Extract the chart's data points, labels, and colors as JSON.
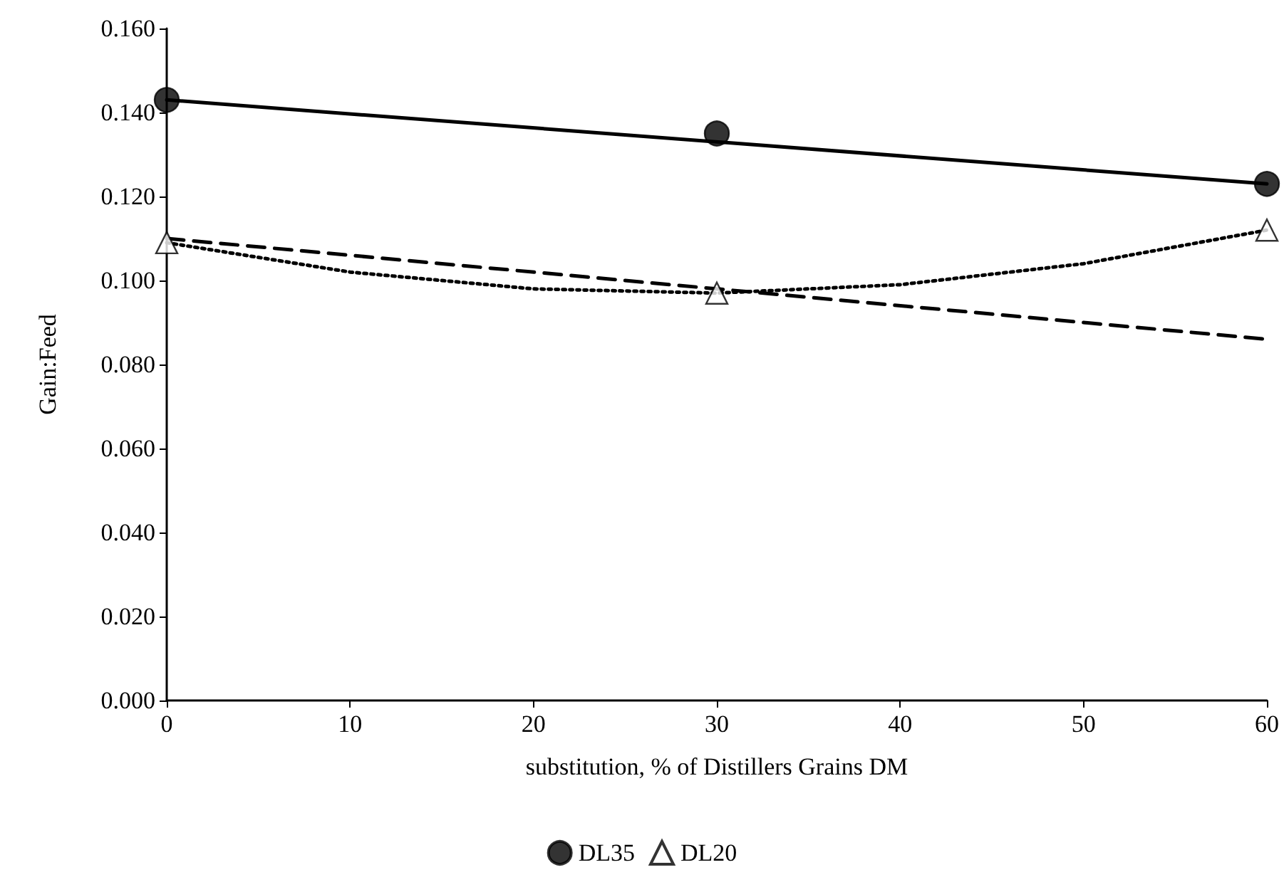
{
  "chart_data": {
    "type": "scatter",
    "xlabel": "substitution, % of Distillers Grains DM",
    "ylabel": "Gain:Feed",
    "xlim": [
      0,
      60
    ],
    "xticks": [
      0,
      10,
      20,
      30,
      40,
      50,
      60
    ],
    "ylim": [
      0,
      0.16
    ],
    "yticks": [
      {
        "value": 0,
        "label": "0.000"
      },
      {
        "value": 0.02,
        "label": "0.020"
      },
      {
        "value": 0.04,
        "label": "0.040"
      },
      {
        "value": 0.06,
        "label": "0.060"
      },
      {
        "value": 0.08,
        "label": "0.080"
      },
      {
        "value": 0.1,
        "label": "0.100"
      },
      {
        "value": 0.12,
        "label": "0.120"
      },
      {
        "value": 0.14,
        "label": "0.140"
      },
      {
        "value": 0.16,
        "label": "0.160"
      }
    ],
    "grid": false,
    "legend": "bottom",
    "series": [
      {
        "name": "DL35",
        "marker": "circle",
        "color": "#000000",
        "x": [
          0,
          30,
          60
        ],
        "values": [
          0.143,
          0.135,
          0.123
        ]
      },
      {
        "name": "DL20",
        "marker": "triangle",
        "color": "#000000",
        "x": [
          0,
          30,
          60
        ],
        "values": [
          0.109,
          0.097,
          0.112
        ]
      },
      {
        "type": "line",
        "marker": "none",
        "line_style": "solid",
        "color": "#000000",
        "x": [
          0,
          60
        ],
        "values": [
          0.143,
          0.123
        ]
      },
      {
        "type": "line",
        "marker": "none",
        "line_style": "dashed",
        "color": "#000000",
        "x": [
          0,
          60
        ],
        "values": [
          0.11,
          0.086
        ]
      },
      {
        "type": "line",
        "marker": "none",
        "line_style": "dotted",
        "color": "#000000",
        "x": [
          0,
          10,
          20,
          30,
          40,
          50,
          60
        ],
        "values": [
          0.109,
          0.102,
          0.098,
          0.097,
          0.099,
          0.104,
          0.112
        ]
      }
    ]
  }
}
